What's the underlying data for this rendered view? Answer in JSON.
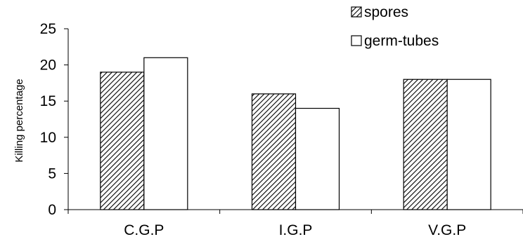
{
  "chart_data": {
    "type": "bar",
    "title": "",
    "xlabel": "",
    "ylabel": "Killing percentage",
    "categories": [
      "C.G.P",
      "I.G.P",
      "V.G.P"
    ],
    "series": [
      {
        "name": "spores",
        "values": [
          19,
          16,
          18
        ],
        "fill": "hatched"
      },
      {
        "name": "germ-tubes",
        "values": [
          21,
          14,
          18
        ],
        "fill": "white"
      }
    ],
    "ylim": [
      0,
      25
    ],
    "yticks": [
      "0",
      "5",
      "10",
      "15",
      "20",
      "25"
    ],
    "grid": false,
    "legend_position": "top-right"
  }
}
